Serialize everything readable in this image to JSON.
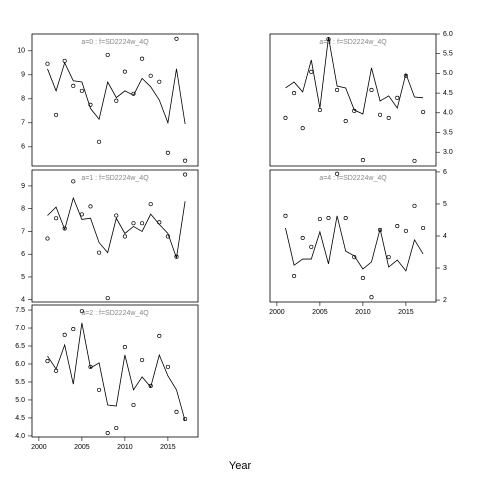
{
  "xlabel": "Year",
  "chart_data": [
    {
      "type": "scatter",
      "title": "a=0  :  f=SD2224w_4Q",
      "yaxis_side": "left",
      "xlim": [
        1999.2,
        2018.5
      ],
      "ylim": [
        5.2,
        10.7
      ],
      "yticks": [
        6,
        7,
        8,
        9,
        10
      ],
      "x": [
        2001,
        2002,
        2003,
        2004,
        2005,
        2006,
        2007,
        2008,
        2009,
        2010,
        2011,
        2012,
        2013,
        2014,
        2015,
        2016,
        2017
      ],
      "series": [
        {
          "mark": "point",
          "color": "#000000",
          "values": [
            9.46,
            7.33,
            9.58,
            8.54,
            8.33,
            7.75,
            6.21,
            9.83,
            7.92,
            9.13,
            8.21,
            9.67,
            8.96,
            8.71,
            5.75,
            10.5,
            5.42
          ]
        },
        {
          "mark": "line",
          "color": "#000000",
          "values": [
            9.25,
            8.33,
            9.5,
            8.75,
            8.7,
            7.6,
            7.15,
            8.7,
            8.05,
            8.33,
            8.15,
            8.85,
            8.5,
            7.95,
            7.0,
            9.25,
            6.95
          ]
        }
      ]
    },
    {
      "type": "scatter",
      "title": "a=1  :  f=SD2224w_4Q",
      "yaxis_side": "left",
      "xlim": [
        1999.2,
        2018.5
      ],
      "ylim": [
        3.9,
        9.7
      ],
      "yticks": [
        4,
        5,
        6,
        7,
        8,
        9
      ],
      "x": [
        2001,
        2002,
        2003,
        2004,
        2005,
        2006,
        2007,
        2008,
        2009,
        2010,
        2011,
        2012,
        2013,
        2014,
        2015,
        2016,
        2017
      ],
      "series": [
        {
          "mark": "point",
          "color": "#000000",
          "values": [
            6.69,
            7.58,
            7.13,
            9.2,
            7.75,
            8.1,
            6.07,
            4.07,
            7.7,
            6.78,
            7.36,
            7.36,
            8.2,
            7.4,
            6.78,
            5.89,
            9.5
          ]
        },
        {
          "mark": "line",
          "color": "#000000",
          "values": [
            7.7,
            8.07,
            7.09,
            8.47,
            7.53,
            7.58,
            6.51,
            6.07,
            7.58,
            6.91,
            7.22,
            7.0,
            7.76,
            7.31,
            6.91,
            5.84,
            8.33
          ]
        }
      ]
    },
    {
      "type": "scatter",
      "title": "a=2  :  f=SD2224w_4Q",
      "yaxis_side": "left",
      "xlim": [
        1999.2,
        2018.5
      ],
      "ylim": [
        3.97,
        7.64
      ],
      "yticks": [
        {
          "value": 4,
          "label": "4.0"
        },
        4.5,
        {
          "value": 5,
          "label": "5.0"
        },
        5.5,
        {
          "value": 6,
          "label": "6.0"
        },
        6.5,
        {
          "value": 7,
          "label": "7.0"
        },
        7.5
      ],
      "xticks": [
        2000,
        2005,
        2010,
        2015
      ],
      "x": [
        2001,
        2002,
        2003,
        2004,
        2005,
        2006,
        2007,
        2008,
        2009,
        2010,
        2011,
        2012,
        2013,
        2014,
        2015,
        2016,
        2017
      ],
      "series": [
        {
          "mark": "point",
          "color": "#000000",
          "values": [
            6.08,
            5.81,
            6.81,
            6.97,
            7.47,
            5.92,
            5.28,
            4.08,
            4.22,
            6.47,
            4.86,
            6.11,
            5.39,
            6.78,
            5.92,
            4.67,
            4.47
          ]
        },
        {
          "mark": "line",
          "color": "#000000",
          "values": [
            6.22,
            5.86,
            6.53,
            5.44,
            7.14,
            5.89,
            6.03,
            4.86,
            4.83,
            6.25,
            5.28,
            5.64,
            5.36,
            6.25,
            5.67,
            5.28,
            4.42
          ]
        }
      ]
    },
    {
      "type": "scatter",
      "title": "a=3  :  f=SD2224w_4Q",
      "yaxis_side": "right",
      "xlim": [
        1999.2,
        2018.5
      ],
      "ylim": [
        2.65,
        6.0
      ],
      "yticks": [
        {
          "value": 3,
          "label": "3.0"
        },
        3.5,
        {
          "value": 4,
          "label": "4.0"
        },
        4.5,
        {
          "value": 5,
          "label": "5.0"
        },
        5.5,
        {
          "value": 6,
          "label": "6.0"
        }
      ],
      "x": [
        2001,
        2002,
        2003,
        2004,
        2005,
        2006,
        2007,
        2008,
        2009,
        2010,
        2011,
        2012,
        2013,
        2014,
        2015,
        2016,
        2017
      ],
      "series": [
        {
          "mark": "point",
          "color": "#000000",
          "values": [
            3.87,
            4.5,
            3.61,
            5.04,
            4.07,
            5.87,
            4.58,
            3.79,
            4.05,
            2.8,
            4.58,
            3.95,
            3.87,
            4.38,
            4.94,
            2.78,
            4.02
          ]
        },
        {
          "mark": "line",
          "color": "#000000",
          "values": [
            4.63,
            4.78,
            4.53,
            5.34,
            4.12,
            5.92,
            4.68,
            4.63,
            4.07,
            3.97,
            5.14,
            4.3,
            4.43,
            4.12,
            4.99,
            4.4,
            4.38
          ]
        }
      ]
    },
    {
      "type": "scatter",
      "title": "a=4  :  f=SD2224w_4Q",
      "yaxis_side": "right",
      "xlim": [
        1999.2,
        2018.5
      ],
      "ylim": [
        1.94,
        6.06
      ],
      "yticks": [
        2,
        3,
        4,
        5,
        6
      ],
      "xticks": [
        2000,
        2005,
        2010,
        2015
      ],
      "x": [
        2001,
        2002,
        2003,
        2004,
        2005,
        2006,
        2007,
        2008,
        2009,
        2010,
        2011,
        2012,
        2013,
        2014,
        2015,
        2016,
        2017
      ],
      "series": [
        {
          "mark": "point",
          "color": "#000000",
          "values": [
            4.63,
            2.75,
            3.94,
            3.66,
            4.53,
            4.56,
            5.94,
            4.56,
            3.34,
            2.69,
            2.09,
            4.19,
            3.34,
            4.31,
            4.16,
            4.94,
            4.25
          ]
        },
        {
          "mark": "line",
          "color": "#000000",
          "values": [
            4.25,
            3.09,
            3.28,
            3.28,
            4.13,
            3.13,
            4.63,
            3.53,
            3.38,
            2.97,
            3.19,
            4.22,
            3.03,
            3.25,
            2.91,
            3.88,
            3.44
          ]
        }
      ]
    }
  ]
}
